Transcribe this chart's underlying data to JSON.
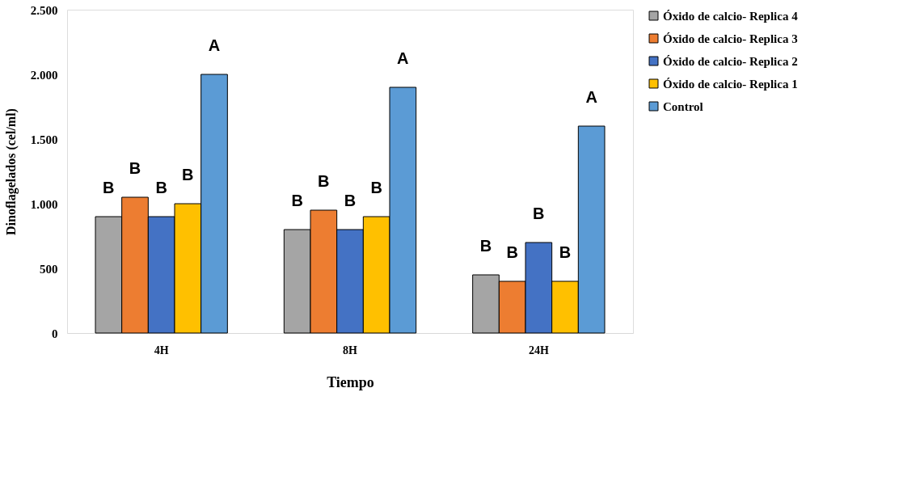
{
  "chart_data": {
    "type": "bar",
    "xlabel": "Tiempo",
    "ylabel": "Dinoflagelados (cel/ml)",
    "categories": [
      "4H",
      "8H",
      "24H"
    ],
    "series": [
      {
        "name": "Óxido de calcio- Replica 4",
        "color": "#a5a5a5",
        "values": [
          900,
          800,
          450
        ],
        "value_labels": [
          "B",
          "B",
          "B"
        ]
      },
      {
        "name": "Óxido de calcio- Replica 3",
        "color": "#ed7d31",
        "values": [
          1050,
          950,
          400
        ],
        "value_labels": [
          "B",
          "B",
          "B"
        ]
      },
      {
        "name": "Óxido de calcio- Replica 2",
        "color": "#4472c4",
        "values": [
          900,
          800,
          700
        ],
        "value_labels": [
          "B",
          "B",
          "B"
        ]
      },
      {
        "name": "Óxido de calcio- Replica 1",
        "color": "#ffc000",
        "values": [
          1000,
          900,
          400
        ],
        "value_labels": [
          "B",
          "B",
          "B"
        ]
      },
      {
        "name": "Control",
        "color": "#5b9bd5",
        "values": [
          2000,
          1900,
          1600
        ],
        "value_labels": [
          "A",
          "A",
          "A"
        ]
      }
    ],
    "ylim": [
      0,
      2500
    ],
    "yticks": [
      0,
      500,
      {
        "value": 1000,
        "label": "1.000"
      },
      {
        "value": 1500,
        "label": "1.500"
      },
      {
        "value": 2000,
        "label": "2.000"
      },
      {
        "value": 2500,
        "label": "2.500"
      }
    ],
    "grid": false,
    "legend": "right"
  }
}
